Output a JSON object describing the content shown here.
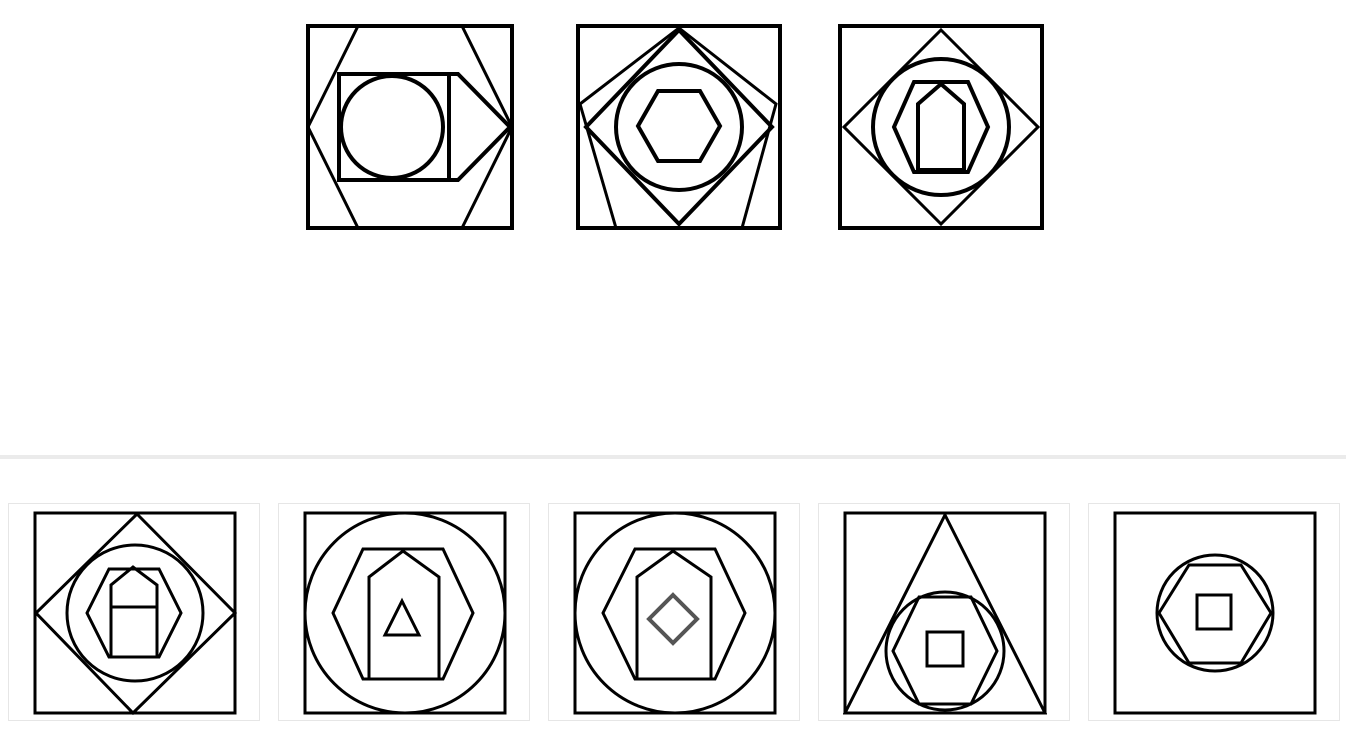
{
  "puzzle": {
    "sequence_count": 3,
    "option_count": 5
  },
  "colors": {
    "line": "#000000",
    "divider": "#ebebeb",
    "option_border": "#e6e6e6",
    "background": "#ffffff"
  },
  "sequence": [
    {
      "id": "seq-1",
      "shapes": [
        "square",
        "hexagon",
        "square",
        "circle",
        "pentagon-arrow"
      ]
    },
    {
      "id": "seq-2",
      "shapes": [
        "square",
        "pentagon",
        "diamond",
        "circle",
        "hexagon"
      ]
    },
    {
      "id": "seq-3",
      "shapes": [
        "square",
        "diamond",
        "circle",
        "hexagon",
        "pentagon-house"
      ]
    }
  ],
  "options": [
    {
      "id": "option-1",
      "shapes": [
        "square",
        "diamond",
        "circle",
        "hexagon",
        "house-pentagon",
        "square"
      ]
    },
    {
      "id": "option-2",
      "shapes": [
        "square",
        "circle",
        "hexagon",
        "house-pentagon",
        "triangle"
      ]
    },
    {
      "id": "option-3",
      "shapes": [
        "square",
        "circle",
        "hexagon",
        "house-pentagon",
        "diamond"
      ]
    },
    {
      "id": "option-4",
      "shapes": [
        "square",
        "triangle",
        "circle",
        "hexagon",
        "square"
      ]
    },
    {
      "id": "option-5",
      "shapes": [
        "square",
        "circle",
        "hexagon",
        "square"
      ]
    }
  ]
}
